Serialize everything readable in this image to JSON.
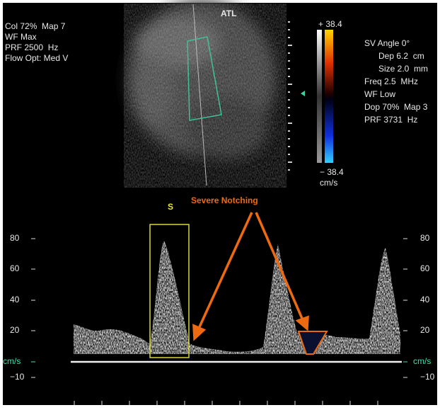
{
  "top_left": [
    "Col 72%  Map 7",
    "WF Max",
    "PRF 2500  Hz",
    "Flow Opt: Med V"
  ],
  "logo": "ATL",
  "color_bar": {
    "max": "+ 38.4",
    "min": "− 38.4",
    "unit": "cm/s"
  },
  "settings": [
    "SV Angle 0°",
    "Dep 6.2  cm",
    "Size 2.0  mm",
    "Freq 2.5  MHz",
    "WF Low",
    "Dop 70%  Map 3",
    "PRF 3731  Hz"
  ],
  "labels": {
    "peak": "S",
    "annotation": "Severe Notching"
  },
  "scale_left": [
    "80",
    "60",
    "40",
    "20",
    "cm/s",
    "−10"
  ],
  "scale_right": [
    "80",
    "60",
    "40",
    "20",
    "cm/s",
    "−10"
  ]
}
